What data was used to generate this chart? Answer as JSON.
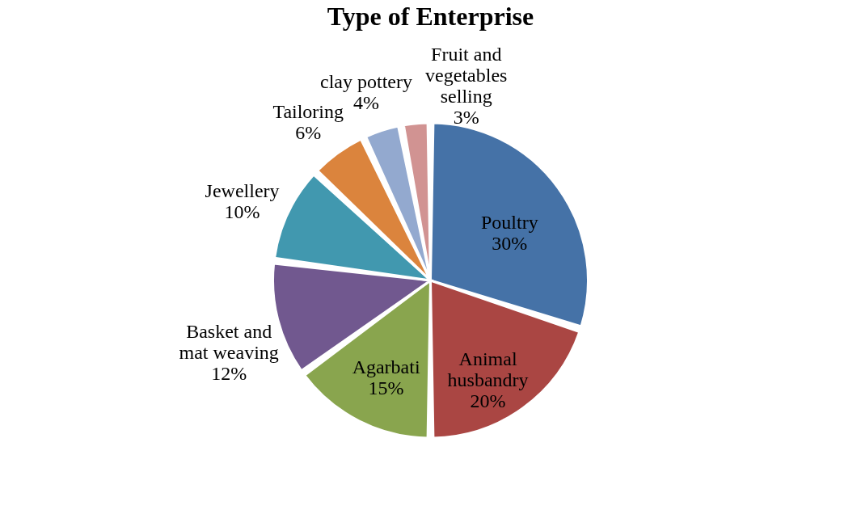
{
  "chart_data": {
    "type": "pie",
    "title": "Type of Enterprise",
    "categories": [
      "Poultry",
      "Animal husbandry",
      "Agarbati",
      "Basket and mat weaving",
      "Jewellery",
      "Tailoring",
      "clay pottery",
      "Fruit and vegetables selling"
    ],
    "values": [
      30,
      20,
      15,
      12,
      10,
      6,
      4,
      3
    ],
    "value_labels": [
      "30%",
      "20%",
      "15%",
      "12%",
      "10%",
      "6%",
      "4%",
      "3%"
    ],
    "colors": [
      "#4572a7",
      "#aa4643",
      "#89a54e",
      "#71588f",
      "#4198af",
      "#db843d",
      "#93a9cf",
      "#d19392"
    ],
    "legend": false
  }
}
